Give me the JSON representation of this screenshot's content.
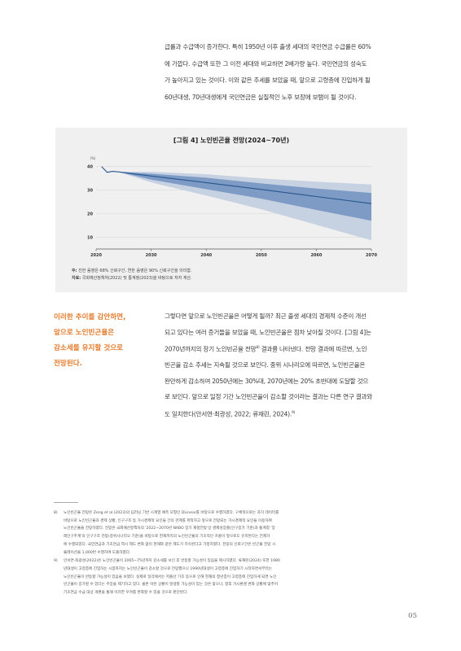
{
  "intro_lines": [
    "급률과 수급액이 증가한다. 특히 1950년 이후 출생 세대의 국민연금 수급률은 60%",
    "에 가깝다. 수급액 또한 그 이전 세대와 비교하면 2배가량 높다. 국민연금의 성숙도",
    "가 높아지고 있는 것이다. 이와 같은 추세를 보았을 때, 앞으로 고령층에 진입하게 될",
    "60년대생, 70년대생에게 국민연금은 실질적인 노후 보장에 보탬이 될 것이다."
  ],
  "figure": {
    "title": "[그림 4] 노인빈곤율 전망(2024~70년)",
    "note_label": "주:",
    "note_text": "진한 음영은 68% 신뢰구간, 연한 음영은 90% 신뢰구간을 의미함.",
    "source_label": "자료:",
    "source_text": "국회예산정책처(2022) 및 통계청(2023)을 바탕으로 저자 계산."
  },
  "chart_data": {
    "type": "area",
    "ylabel": "(%)",
    "xlim": [
      2020,
      2070
    ],
    "ylim": [
      5,
      42
    ],
    "x_ticks": [
      "2020",
      "2030",
      "2040",
      "2050",
      "2060",
      "2070"
    ],
    "y_ticks": [
      "10",
      "20",
      "30",
      "40"
    ],
    "grid": true,
    "series": [
      {
        "x": [
          2021,
          2022,
          2023,
          2024,
          2030,
          2040,
          2050,
          2060,
          2070
        ],
        "values": [
          40,
          37.6,
          38.0,
          37.8,
          36,
          33.2,
          30.3,
          27.3,
          24.3
        ]
      }
    ],
    "band_68": {
      "x": [
        2024,
        2030,
        2040,
        2050,
        2060,
        2070
      ],
      "lower": [
        37.8,
        34.5,
        30.4,
        26.4,
        21.6,
        17
      ],
      "upper": [
        37.8,
        37,
        35.3,
        32.9,
        30.7,
        28.8
      ]
    },
    "band_90": {
      "x": [
        2024,
        2030,
        2040,
        2050,
        2060,
        2070
      ],
      "lower": [
        37.8,
        33.3,
        27.7,
        21.9,
        15.3,
        8.7
      ],
      "upper": [
        37.8,
        37.8,
        36.8,
        35,
        33.6,
        32.4
      ]
    },
    "colors": {
      "line": "#27578f",
      "band_68": "#7d9bc5",
      "band_90": "#c6d1e2"
    }
  },
  "sidebar_lines": [
    "이러한 추이를 감안하면,",
    "앞으로 노인빈곤율은",
    "감소세를 유지할 것으로",
    "전망된다."
  ],
  "body_paragraph": {
    "line1": "그렇다면 앞으로 노인빈곤율은 어떻게 될까? 최근 출생 세대의 경제적 수준이 개선",
    "line2": "되고 있다는 여러 증거들을 보았을 때, 노인빈곤율은 점차 낮아질 것이다. [그림 4]는",
    "line3_pre": "2070년까지의 장기 노인빈곤율 전망",
    "line3_sup": "8)",
    "line3_post": " 결과를 나타낸다. 전망 결과에 따르면, 노인",
    "line4": "빈곤율 감소 추세는 지속될 것으로 보인다. 중위 시나리오에 따르면, 노인빈곤율은",
    "line5": "완만하게 감소하여 2050년에는 30%대, 2070년에는 20% 초반대에 도달할 것으",
    "line6": "로 보인다. 앞으로 일정 기간 노인빈곤율이 감소할 것이라는 결과는 다른 연구 결과와",
    "line7_pre": "도 일치한다(안서연·최광성, 2022; 류재린, 2024).",
    "line7_sup": "9)"
  },
  "footnotes": [
    {
      "num": "8)",
      "lines": [
        "노인빈곤율 전망은 Zeng et al.(2023)의 딥러닝 기반 시계열 예측 모형인 DLinear를 바탕으로 수행하였다. 구체적으로는 과거 데이터를",
        "바탕으로 노인빈곤율과 경제 상황, 인구구조 등 거시경제적 요인들 간의 관계를 파악하고 앞으로 전망되는 거시경제적 요인을 이용하여",
        "노인빈곤율을 전망하였다. 전망은 국회예산정책처의 '2022~2070년 NABO 장기 재정전망'상 경제성장률(인구증가 기준)과 통계청 '장",
        "래인구추계'의 인구구조 전망(중위시나리오 기준)을 바탕으로 현재까지의 노인빈곤율의 기초적인 흐름이 앞으로도 유지된다는 전제하",
        "에 수행되었다. 국민연금과 기초연금 역시 제도 변화 없이 현재와 같은 제도가 지속된다고 가정하였다. 전망의 신뢰구간은 빈곤율 전망 시",
        "뮬레이션을 1,000번 수행하여 도출하였다."
      ]
    },
    {
      "num": "9)",
      "lines": [
        "안서연·최광성(2022)은 노인빈곤율이 2065~75년까지 감소세를 보인 후 반등할 가능성이 있음을 제시하였다. 류재린(2024) 또한 1980",
        "년대생이 고령층에 진입하는 시점까지는 노인빈곤율이 감소할 것으로 전망했으나 1990년대생이 고령층에 진입하기 시작하면서부터는",
        "노인빈곤율이 반등할 가능성이 있음을 보였다. 실제로 일각에서는 저출산 기조 등으로 인해 현재의 청년층이 고령층에 진입하게 되면 노인",
        "빈곤율이 증가할 수 있다는 주장을 제기하고 있다. 물론 이런 상황이 발생할 가능성이 있는 것은 맞으나, 향후 거시환경 변화 상황에 맞추어",
        "기초연금 수급 대상 개편을 통해 이러한 우려를 완화할 수 있을 것으로 판단된다."
      ]
    }
  ],
  "page_number": "05"
}
